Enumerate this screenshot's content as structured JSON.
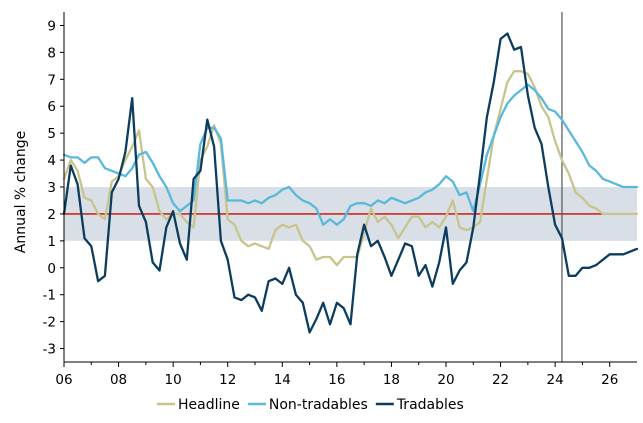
{
  "chart_data": {
    "type": "line",
    "xlabel": "",
    "ylabel": "Annual % change",
    "xlim": [
      2006,
      2027
    ],
    "ylim": [
      -3.5,
      9.5
    ],
    "x_tick_labels": [
      "06",
      "08",
      "10",
      "12",
      "14",
      "16",
      "18",
      "20",
      "22",
      "24",
      "26"
    ],
    "x_tick_values": [
      2006,
      2008,
      2010,
      2012,
      2014,
      2016,
      2018,
      2020,
      2022,
      2024,
      2026
    ],
    "y_ticks": [
      -3,
      -2,
      -1,
      0,
      1,
      2,
      3,
      4,
      5,
      6,
      7,
      8,
      9
    ],
    "target_band": [
      1,
      3
    ],
    "target_midpoint": 2,
    "vertical_marker_x": 2024.25,
    "grid": false,
    "legend_position": "bottom",
    "colors": {
      "headline": "#c8c48e",
      "non_tradables": "#5ab8dc",
      "tradables": "#0c3d5e",
      "band": "#d9dfe6",
      "target": "#cc2a20",
      "marker": "#555555"
    },
    "series": [
      {
        "name": "Headline",
        "color": "#c8c48e",
        "points": [
          [
            2006.0,
            3.3
          ],
          [
            2006.25,
            4.0
          ],
          [
            2006.5,
            3.6
          ],
          [
            2006.75,
            2.6
          ],
          [
            2007.0,
            2.5
          ],
          [
            2007.25,
            2.0
          ],
          [
            2007.5,
            1.8
          ],
          [
            2007.75,
            3.2
          ],
          [
            2008.0,
            3.4
          ],
          [
            2008.25,
            4.0
          ],
          [
            2008.5,
            4.5
          ],
          [
            2008.75,
            5.1
          ],
          [
            2009.0,
            3.3
          ],
          [
            2009.25,
            3.0
          ],
          [
            2009.5,
            2.1
          ],
          [
            2009.75,
            1.8
          ],
          [
            2010.0,
            2.0
          ],
          [
            2010.25,
            2.0
          ],
          [
            2010.5,
            1.7
          ],
          [
            2010.75,
            1.5
          ],
          [
            2011.0,
            4.0
          ],
          [
            2011.25,
            4.5
          ],
          [
            2011.5,
            5.3
          ],
          [
            2011.75,
            4.6
          ],
          [
            2012.0,
            1.8
          ],
          [
            2012.25,
            1.6
          ],
          [
            2012.5,
            1.0
          ],
          [
            2012.75,
            0.8
          ],
          [
            2013.0,
            0.9
          ],
          [
            2013.25,
            0.8
          ],
          [
            2013.5,
            0.7
          ],
          [
            2013.75,
            1.4
          ],
          [
            2014.0,
            1.6
          ],
          [
            2014.25,
            1.5
          ],
          [
            2014.5,
            1.6
          ],
          [
            2014.75,
            1.0
          ],
          [
            2015.0,
            0.8
          ],
          [
            2015.25,
            0.3
          ],
          [
            2015.5,
            0.4
          ],
          [
            2015.75,
            0.4
          ],
          [
            2016.0,
            0.1
          ],
          [
            2016.25,
            0.4
          ],
          [
            2016.5,
            0.4
          ],
          [
            2016.75,
            0.4
          ],
          [
            2017.0,
            1.3
          ],
          [
            2017.25,
            2.2
          ],
          [
            2017.5,
            1.7
          ],
          [
            2017.75,
            1.9
          ],
          [
            2018.0,
            1.6
          ],
          [
            2018.25,
            1.1
          ],
          [
            2018.5,
            1.5
          ],
          [
            2018.75,
            1.9
          ],
          [
            2019.0,
            1.9
          ],
          [
            2019.25,
            1.5
          ],
          [
            2019.5,
            1.7
          ],
          [
            2019.75,
            1.5
          ],
          [
            2020.0,
            1.9
          ],
          [
            2020.25,
            2.5
          ],
          [
            2020.5,
            1.5
          ],
          [
            2020.75,
            1.4
          ],
          [
            2021.0,
            1.5
          ],
          [
            2021.25,
            1.7
          ],
          [
            2021.5,
            3.3
          ],
          [
            2021.75,
            4.9
          ],
          [
            2022.0,
            5.9
          ],
          [
            2022.25,
            6.9
          ],
          [
            2022.5,
            7.3
          ],
          [
            2022.75,
            7.3
          ],
          [
            2023.0,
            7.2
          ],
          [
            2023.25,
            6.7
          ],
          [
            2023.5,
            6.0
          ],
          [
            2023.75,
            5.6
          ],
          [
            2024.0,
            4.7
          ],
          [
            2024.25,
            4.0
          ],
          [
            2024.5,
            3.5
          ],
          [
            2024.75,
            2.8
          ],
          [
            2025.0,
            2.6
          ],
          [
            2025.25,
            2.3
          ],
          [
            2025.5,
            2.2
          ],
          [
            2025.75,
            2.0
          ],
          [
            2026.0,
            2.0
          ],
          [
            2026.5,
            2.0
          ],
          [
            2027.0,
            2.0
          ]
        ]
      },
      {
        "name": "Non-tradables",
        "color": "#5ab8dc",
        "points": [
          [
            2006.0,
            4.2
          ],
          [
            2006.25,
            4.1
          ],
          [
            2006.5,
            4.1
          ],
          [
            2006.75,
            3.9
          ],
          [
            2007.0,
            4.1
          ],
          [
            2007.25,
            4.1
          ],
          [
            2007.5,
            3.7
          ],
          [
            2007.75,
            3.6
          ],
          [
            2008.0,
            3.5
          ],
          [
            2008.25,
            3.4
          ],
          [
            2008.5,
            3.7
          ],
          [
            2008.75,
            4.2
          ],
          [
            2009.0,
            4.3
          ],
          [
            2009.25,
            3.9
          ],
          [
            2009.5,
            3.4
          ],
          [
            2009.75,
            3.0
          ],
          [
            2010.0,
            2.4
          ],
          [
            2010.25,
            2.1
          ],
          [
            2010.5,
            2.3
          ],
          [
            2010.75,
            2.5
          ],
          [
            2011.0,
            4.6
          ],
          [
            2011.25,
            5.2
          ],
          [
            2011.5,
            5.2
          ],
          [
            2011.75,
            4.8
          ],
          [
            2012.0,
            2.5
          ],
          [
            2012.25,
            2.5
          ],
          [
            2012.5,
            2.5
          ],
          [
            2012.75,
            2.4
          ],
          [
            2013.0,
            2.5
          ],
          [
            2013.25,
            2.4
          ],
          [
            2013.5,
            2.6
          ],
          [
            2013.75,
            2.7
          ],
          [
            2014.0,
            2.9
          ],
          [
            2014.25,
            3.0
          ],
          [
            2014.5,
            2.7
          ],
          [
            2014.75,
            2.5
          ],
          [
            2015.0,
            2.4
          ],
          [
            2015.25,
            2.2
          ],
          [
            2015.5,
            1.6
          ],
          [
            2015.75,
            1.8
          ],
          [
            2016.0,
            1.6
          ],
          [
            2016.25,
            1.8
          ],
          [
            2016.5,
            2.3
          ],
          [
            2016.75,
            2.4
          ],
          [
            2017.0,
            2.4
          ],
          [
            2017.25,
            2.3
          ],
          [
            2017.5,
            2.5
          ],
          [
            2017.75,
            2.4
          ],
          [
            2018.0,
            2.6
          ],
          [
            2018.25,
            2.5
          ],
          [
            2018.5,
            2.4
          ],
          [
            2018.75,
            2.5
          ],
          [
            2019.0,
            2.6
          ],
          [
            2019.25,
            2.8
          ],
          [
            2019.5,
            2.9
          ],
          [
            2019.75,
            3.1
          ],
          [
            2020.0,
            3.4
          ],
          [
            2020.25,
            3.2
          ],
          [
            2020.5,
            2.7
          ],
          [
            2020.75,
            2.8
          ],
          [
            2021.0,
            2.1
          ],
          [
            2021.25,
            3.1
          ],
          [
            2021.5,
            4.2
          ],
          [
            2021.75,
            4.9
          ],
          [
            2022.0,
            5.6
          ],
          [
            2022.25,
            6.1
          ],
          [
            2022.5,
            6.4
          ],
          [
            2022.75,
            6.6
          ],
          [
            2023.0,
            6.8
          ],
          [
            2023.25,
            6.6
          ],
          [
            2023.5,
            6.3
          ],
          [
            2023.75,
            5.9
          ],
          [
            2024.0,
            5.8
          ],
          [
            2024.25,
            5.5
          ],
          [
            2024.5,
            5.1
          ],
          [
            2024.75,
            4.7
          ],
          [
            2025.0,
            4.3
          ],
          [
            2025.25,
            3.8
          ],
          [
            2025.5,
            3.6
          ],
          [
            2025.75,
            3.3
          ],
          [
            2026.0,
            3.2
          ],
          [
            2026.25,
            3.1
          ],
          [
            2026.5,
            3.0
          ],
          [
            2027.0,
            3.0
          ]
        ]
      },
      {
        "name": "Tradables",
        "color": "#0c3d5e",
        "points": [
          [
            2006.0,
            2.0
          ],
          [
            2006.25,
            3.8
          ],
          [
            2006.5,
            3.1
          ],
          [
            2006.75,
            1.1
          ],
          [
            2007.0,
            0.8
          ],
          [
            2007.25,
            -0.5
          ],
          [
            2007.5,
            -0.3
          ],
          [
            2007.75,
            2.8
          ],
          [
            2008.0,
            3.3
          ],
          [
            2008.25,
            4.3
          ],
          [
            2008.5,
            6.3
          ],
          [
            2008.75,
            2.3
          ],
          [
            2009.0,
            1.7
          ],
          [
            2009.25,
            0.2
          ],
          [
            2009.5,
            -0.1
          ],
          [
            2009.75,
            1.5
          ],
          [
            2010.0,
            2.1
          ],
          [
            2010.25,
            0.9
          ],
          [
            2010.5,
            0.3
          ],
          [
            2010.75,
            3.3
          ],
          [
            2011.0,
            3.6
          ],
          [
            2011.25,
            5.5
          ],
          [
            2011.5,
            4.5
          ],
          [
            2011.75,
            1.0
          ],
          [
            2012.0,
            0.3
          ],
          [
            2012.25,
            -1.1
          ],
          [
            2012.5,
            -1.2
          ],
          [
            2012.75,
            -1.0
          ],
          [
            2013.0,
            -1.1
          ],
          [
            2013.25,
            -1.6
          ],
          [
            2013.5,
            -0.5
          ],
          [
            2013.75,
            -0.4
          ],
          [
            2014.0,
            -0.6
          ],
          [
            2014.25,
            0.0
          ],
          [
            2014.5,
            -1.0
          ],
          [
            2014.75,
            -1.3
          ],
          [
            2015.0,
            -2.4
          ],
          [
            2015.25,
            -1.9
          ],
          [
            2015.5,
            -1.3
          ],
          [
            2015.75,
            -2.1
          ],
          [
            2016.0,
            -1.3
          ],
          [
            2016.25,
            -1.5
          ],
          [
            2016.5,
            -2.1
          ],
          [
            2016.75,
            0.5
          ],
          [
            2017.0,
            1.6
          ],
          [
            2017.25,
            0.8
          ],
          [
            2017.5,
            1.0
          ],
          [
            2017.75,
            0.4
          ],
          [
            2018.0,
            -0.3
          ],
          [
            2018.25,
            0.3
          ],
          [
            2018.5,
            0.9
          ],
          [
            2018.75,
            0.8
          ],
          [
            2019.0,
            -0.3
          ],
          [
            2019.25,
            0.1
          ],
          [
            2019.5,
            -0.7
          ],
          [
            2019.75,
            0.2
          ],
          [
            2020.0,
            1.5
          ],
          [
            2020.25,
            -0.6
          ],
          [
            2020.5,
            -0.1
          ],
          [
            2020.75,
            0.2
          ],
          [
            2021.0,
            1.5
          ],
          [
            2021.25,
            3.5
          ],
          [
            2021.5,
            5.6
          ],
          [
            2021.75,
            6.9
          ],
          [
            2022.0,
            8.5
          ],
          [
            2022.25,
            8.7
          ],
          [
            2022.5,
            8.1
          ],
          [
            2022.75,
            8.2
          ],
          [
            2023.0,
            6.4
          ],
          [
            2023.25,
            5.2
          ],
          [
            2023.5,
            4.6
          ],
          [
            2023.75,
            3.0
          ],
          [
            2024.0,
            1.6
          ],
          [
            2024.25,
            1.1
          ],
          [
            2024.5,
            -0.3
          ],
          [
            2024.75,
            -0.3
          ],
          [
            2025.0,
            0.0
          ],
          [
            2025.25,
            0.0
          ],
          [
            2025.5,
            0.1
          ],
          [
            2025.75,
            0.3
          ],
          [
            2026.0,
            0.5
          ],
          [
            2026.25,
            0.5
          ],
          [
            2026.5,
            0.5
          ],
          [
            2026.75,
            0.6
          ],
          [
            2027.0,
            0.7
          ]
        ]
      }
    ]
  }
}
